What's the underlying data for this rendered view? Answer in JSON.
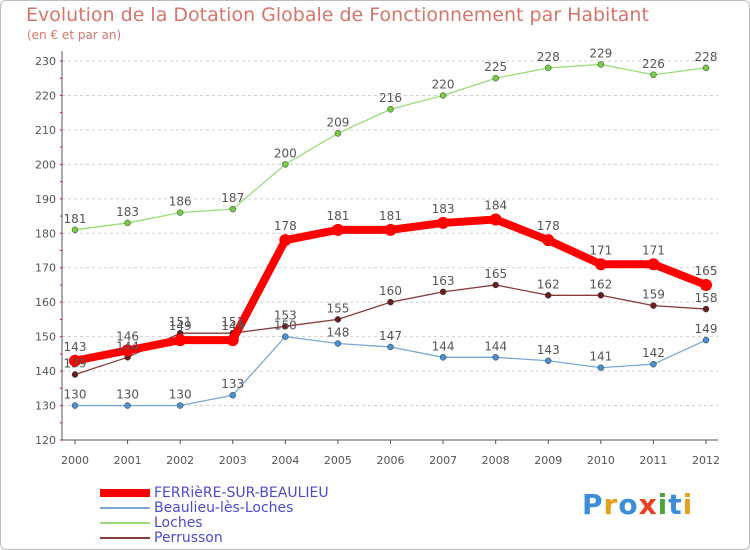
{
  "title": "Evolution de la Dotation Globale de Fonctionnement par Habitant",
  "subtitle": "(en € et par an)",
  "brand": {
    "text": "Proxiti",
    "colors": [
      "#3a8fd8",
      "#e8a020",
      "#3a8fd8",
      "#e84020",
      "#4aa838",
      "#3a8fd8",
      "#e8a020"
    ]
  },
  "chart_data": {
    "type": "line",
    "title": "Evolution de la Dotation Globale de Fonctionnement par Habitant",
    "subtitle": "(en € et par an)",
    "xlabel": "",
    "ylabel": "",
    "categories": [
      "2000",
      "2001",
      "2002",
      "2003",
      "2004",
      "2005",
      "2006",
      "2007",
      "2008",
      "2009",
      "2010",
      "2011",
      "2012"
    ],
    "yticks": [
      "120",
      "130",
      "140",
      "150",
      "160",
      "170",
      "180",
      "190",
      "200",
      "210",
      "220",
      "230"
    ],
    "ylim": [
      120,
      230
    ],
    "grid": "horizontal dashed",
    "legend_position": "bottom-left",
    "series": [
      {
        "name": "Loches",
        "color": "#99dd77",
        "marker": "#77cc44",
        "weight": "thin",
        "values": [
          181,
          183,
          186,
          187,
          200,
          209,
          216,
          220,
          225,
          228,
          229,
          226,
          228
        ]
      },
      {
        "name": "Perrusson",
        "color": "#8b3a3a",
        "marker": "#6b1e1e",
        "weight": "thin",
        "values": [
          139,
          144,
          151,
          151,
          153,
          155,
          160,
          163,
          165,
          162,
          162,
          159,
          158
        ]
      },
      {
        "name": "Beaulieu-lès-Loches",
        "color": "#7aa8d8",
        "marker": "#4a90d0",
        "weight": "thin",
        "values": [
          130,
          130,
          130,
          133,
          150,
          148,
          147,
          144,
          144,
          143,
          141,
          142,
          149
        ]
      },
      {
        "name": "FERRièRE-SUR-BEAULIEU",
        "color": "#ff0000",
        "marker": "#ff0000",
        "weight": "thick",
        "values": [
          143,
          146,
          149,
          149,
          178,
          181,
          181,
          183,
          184,
          178,
          171,
          171,
          165
        ]
      }
    ],
    "legend_order": [
      "FERRièRE-SUR-BEAULIEU",
      "Beaulieu-lès-Loches",
      "Loches",
      "Perrusson"
    ]
  }
}
